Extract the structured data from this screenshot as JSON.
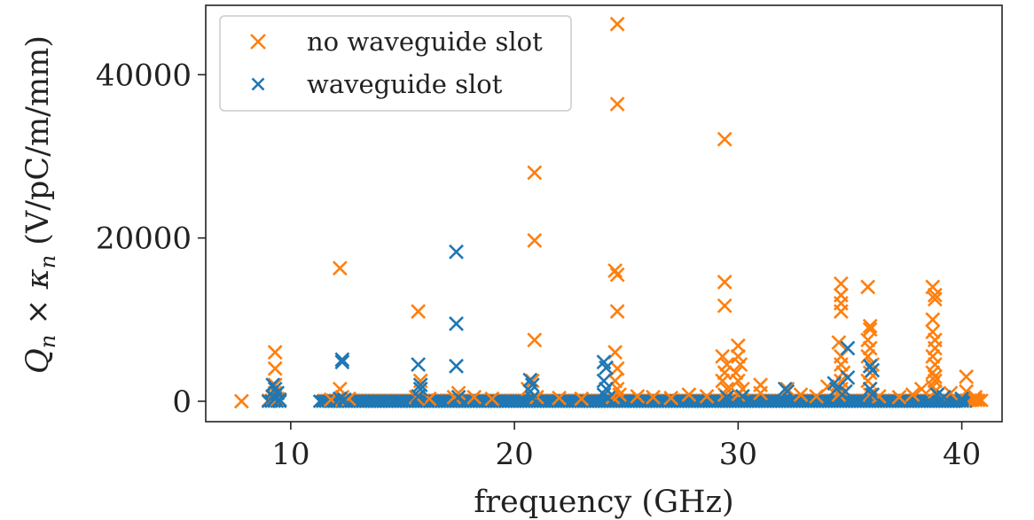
{
  "chart_data": {
    "type": "scatter",
    "title": "",
    "xlabel": "frequency (GHz)",
    "ylabel_parts": {
      "q": "Q",
      "q_sub": "n",
      "times": " × ",
      "k": "κ",
      "k_sub": "n",
      "unit": " (V/pC/m/mm)"
    },
    "xlim": [
      6.2,
      41.8
    ],
    "ylim": [
      -2500,
      48500
    ],
    "xticks": [
      10,
      20,
      30,
      40
    ],
    "yticks": [
      0,
      20000,
      40000
    ],
    "grid": false,
    "legend_position": "top-left",
    "series": [
      {
        "name": "no waveguide slot",
        "color": "#ff7f0e",
        "points": [
          [
            7.8,
            0
          ],
          [
            9.3,
            6000
          ],
          [
            9.3,
            4000
          ],
          [
            9.3,
            2000
          ],
          [
            9.3,
            1000
          ],
          [
            9.2,
            500
          ],
          [
            9.4,
            300
          ],
          [
            12.2,
            16300
          ],
          [
            12.2,
            1500
          ],
          [
            12.3,
            500
          ],
          [
            11.8,
            200
          ],
          [
            12.6,
            300
          ],
          [
            15.7,
            11000
          ],
          [
            15.8,
            2500
          ],
          [
            15.8,
            1500
          ],
          [
            15.6,
            500
          ],
          [
            16.2,
            300
          ],
          [
            17.5,
            1000
          ],
          [
            17.3,
            500
          ],
          [
            18.2,
            500
          ],
          [
            19.0,
            300
          ],
          [
            20.9,
            28000
          ],
          [
            20.9,
            19700
          ],
          [
            20.9,
            7500
          ],
          [
            20.8,
            2500
          ],
          [
            20.6,
            1500
          ],
          [
            21.0,
            500
          ],
          [
            22.0,
            400
          ],
          [
            23.0,
            300
          ],
          [
            24.6,
            46200
          ],
          [
            24.6,
            36400
          ],
          [
            24.5,
            16000
          ],
          [
            24.6,
            15500
          ],
          [
            24.6,
            11000
          ],
          [
            24.5,
            6000
          ],
          [
            24.6,
            4000
          ],
          [
            24.5,
            2500
          ],
          [
            24.6,
            1500
          ],
          [
            24.7,
            800
          ],
          [
            24.4,
            500
          ],
          [
            25.5,
            600
          ],
          [
            26.2,
            500
          ],
          [
            27.0,
            400
          ],
          [
            27.8,
            800
          ],
          [
            28.6,
            600
          ],
          [
            29.4,
            32100
          ],
          [
            29.4,
            14600
          ],
          [
            29.4,
            11700
          ],
          [
            29.3,
            5500
          ],
          [
            29.5,
            4500
          ],
          [
            29.4,
            3500
          ],
          [
            29.3,
            2500
          ],
          [
            29.5,
            1500
          ],
          [
            29.4,
            800
          ],
          [
            30.0,
            6800
          ],
          [
            30.0,
            5500
          ],
          [
            30.1,
            4500
          ],
          [
            29.9,
            3500
          ],
          [
            30.0,
            2500
          ],
          [
            30.2,
            1500
          ],
          [
            30.0,
            800
          ],
          [
            31.0,
            2000
          ],
          [
            31.0,
            1000
          ],
          [
            32.2,
            1500
          ],
          [
            32.8,
            800
          ],
          [
            33.5,
            600
          ],
          [
            34.0,
            1800
          ],
          [
            34.6,
            14400
          ],
          [
            34.6,
            13000
          ],
          [
            34.6,
            12000
          ],
          [
            34.6,
            11000
          ],
          [
            34.5,
            7200
          ],
          [
            34.6,
            5500
          ],
          [
            34.6,
            4500
          ],
          [
            34.7,
            3500
          ],
          [
            34.6,
            2500
          ],
          [
            34.6,
            1500
          ],
          [
            34.5,
            800
          ],
          [
            35.8,
            14000
          ],
          [
            35.9,
            9200
          ],
          [
            35.9,
            8800
          ],
          [
            35.8,
            7500
          ],
          [
            35.9,
            6500
          ],
          [
            35.8,
            5500
          ],
          [
            36.0,
            4500
          ],
          [
            35.9,
            3500
          ],
          [
            35.8,
            2500
          ],
          [
            35.9,
            1500
          ],
          [
            35.9,
            800
          ],
          [
            36.3,
            600
          ],
          [
            37.2,
            500
          ],
          [
            37.8,
            800
          ],
          [
            38.2,
            1500
          ],
          [
            38.7,
            14000
          ],
          [
            38.8,
            13000
          ],
          [
            38.8,
            12500
          ],
          [
            38.7,
            10000
          ],
          [
            38.7,
            8500
          ],
          [
            38.8,
            7500
          ],
          [
            38.8,
            6500
          ],
          [
            38.7,
            5500
          ],
          [
            38.8,
            4500
          ],
          [
            38.7,
            3500
          ],
          [
            38.8,
            3000
          ],
          [
            38.8,
            2500
          ],
          [
            38.7,
            1800
          ],
          [
            38.8,
            1200
          ],
          [
            38.9,
            800
          ],
          [
            39.5,
            1000
          ],
          [
            40.2,
            3000
          ],
          [
            40.2,
            1200
          ],
          [
            40.6,
            500
          ],
          [
            40.6,
            200
          ]
        ]
      },
      {
        "name": "waveguide slot",
        "color": "#1f77b4",
        "points": [
          [
            9.2,
            2000
          ],
          [
            9.3,
            1500
          ],
          [
            9.4,
            1000
          ],
          [
            9.2,
            600
          ],
          [
            9.3,
            300
          ],
          [
            9.5,
            200
          ],
          [
            12.3,
            5100
          ],
          [
            12.3,
            4800
          ],
          [
            12.2,
            300
          ],
          [
            12.4,
            200
          ],
          [
            15.7,
            4500
          ],
          [
            15.8,
            2000
          ],
          [
            15.8,
            1500
          ],
          [
            15.7,
            600
          ],
          [
            17.4,
            18300
          ],
          [
            17.4,
            9500
          ],
          [
            17.4,
            4300
          ],
          [
            17.5,
            500
          ],
          [
            20.7,
            2600
          ],
          [
            20.8,
            2000
          ],
          [
            20.7,
            1200
          ],
          [
            20.8,
            400
          ],
          [
            24.0,
            4800
          ],
          [
            24.1,
            4100
          ],
          [
            24.0,
            2500
          ],
          [
            24.1,
            1500
          ],
          [
            24.0,
            800
          ],
          [
            24.2,
            400
          ],
          [
            29.5,
            500
          ],
          [
            30.2,
            600
          ],
          [
            32.1,
            1500
          ],
          [
            32.2,
            1200
          ],
          [
            34.3,
            2200
          ],
          [
            34.4,
            1500
          ],
          [
            34.9,
            6500
          ],
          [
            34.9,
            2900
          ],
          [
            34.8,
            1200
          ],
          [
            35.9,
            4300
          ],
          [
            36.0,
            3800
          ],
          [
            35.9,
            1500
          ],
          [
            36.0,
            800
          ],
          [
            38.9,
            800
          ],
          [
            39.2,
            500
          ],
          [
            40.0,
            300
          ]
        ]
      }
    ],
    "baseline_bands": [
      {
        "series": 0,
        "ranges": [
          [
            9.0,
            9.6
          ],
          [
            11.5,
            41.0
          ]
        ]
      },
      {
        "series": 1,
        "ranges": [
          [
            9.0,
            9.6
          ],
          [
            11.3,
            40.2
          ]
        ]
      }
    ]
  }
}
